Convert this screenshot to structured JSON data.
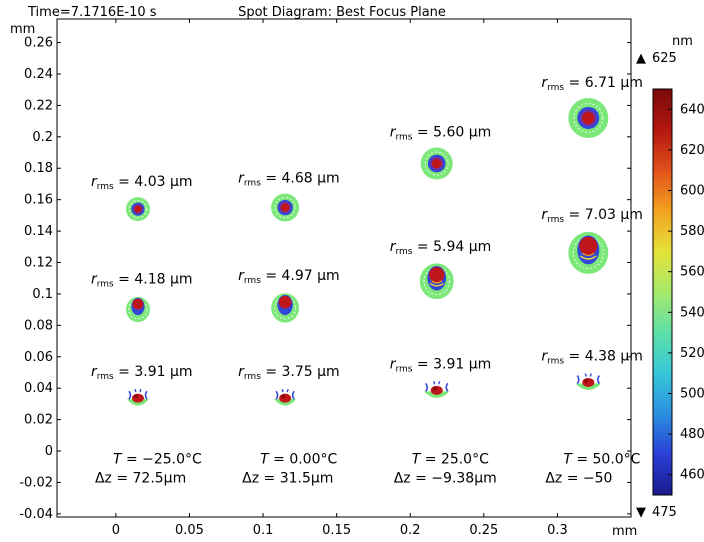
{
  "header": {
    "time_label": "Time=7.1716E-10 s",
    "title": "Spot Diagram: Best Focus Plane"
  },
  "axes": {
    "y_unit": "mm",
    "x_unit": "mm"
  },
  "colorbar": {
    "unit": "nm",
    "max_label": "625",
    "min_label": "475",
    "max_marker": "▲",
    "min_marker": "▼",
    "colors": [
      "#1a1a8c",
      "#2a3fd6",
      "#2b8fe0",
      "#36c7d8",
      "#5ee0a8",
      "#a6e96a",
      "#e5e23a",
      "#f2a21f",
      "#e0501a",
      "#b3160f",
      "#7a0a0a"
    ]
  },
  "chart_data": {
    "type": "scatter",
    "title": "Spot Diagram: Best Focus Plane",
    "xlabel": "mm",
    "ylabel": "mm",
    "xlim": [
      -0.04,
      0.35
    ],
    "ylim": [
      -0.042,
      0.275
    ],
    "x_ticks": [
      "0",
      "0.05",
      "0.1",
      "0.15",
      "0.2",
      "0.25",
      "0.3"
    ],
    "x_tick_values": [
      0,
      0.05,
      0.1,
      0.15,
      0.2,
      0.25,
      0.3
    ],
    "y_ticks": [
      "-0.04",
      "-0.02",
      "0",
      "0.02",
      "0.04",
      "0.06",
      "0.08",
      "0.1",
      "0.12",
      "0.14",
      "0.16",
      "0.18",
      "0.2",
      "0.22",
      "0.24",
      "0.26"
    ],
    "y_tick_values": [
      -0.04,
      -0.02,
      0,
      0.02,
      0.04,
      0.06,
      0.08,
      0.1,
      0.12,
      0.14,
      0.16,
      0.18,
      0.2,
      0.22,
      0.24,
      0.26
    ],
    "colorbar": {
      "label": "nm",
      "range": [
        450,
        650
      ],
      "ticks": [
        460,
        480,
        500,
        520,
        540,
        560,
        580,
        600,
        620,
        640
      ]
    },
    "spots": [
      {
        "x": 0.015,
        "y": 0.154,
        "rms": "4.03 µm",
        "style": "round"
      },
      {
        "x": 0.015,
        "y": 0.092,
        "rms": "4.18 µm",
        "style": "tear"
      },
      {
        "x": 0.015,
        "y": 0.033,
        "rms": "3.91 µm",
        "style": "flare"
      },
      {
        "x": 0.115,
        "y": 0.155,
        "rms": "4.68 µm",
        "style": "round"
      },
      {
        "x": 0.115,
        "y": 0.093,
        "rms": "4.97 µm",
        "style": "tear"
      },
      {
        "x": 0.115,
        "y": 0.033,
        "rms": "3.75 µm",
        "style": "flare"
      },
      {
        "x": 0.218,
        "y": 0.183,
        "rms": "5.60 µm",
        "style": "round"
      },
      {
        "x": 0.218,
        "y": 0.11,
        "rms": "5.94 µm",
        "style": "tear"
      },
      {
        "x": 0.218,
        "y": 0.038,
        "rms": "3.91 µm",
        "style": "flare"
      },
      {
        "x": 0.321,
        "y": 0.212,
        "rms": "6.71 µm",
        "style": "round"
      },
      {
        "x": 0.321,
        "y": 0.128,
        "rms": "7.03 µm",
        "style": "tear"
      },
      {
        "x": 0.321,
        "y": 0.043,
        "rms": "4.38 µm",
        "style": "flare"
      }
    ],
    "conditions": [
      {
        "x": 0.015,
        "T": "−25.0°C",
        "dz": "72.5µm"
      },
      {
        "x": 0.115,
        "T": "0.00°C",
        "dz": "31.5µm"
      },
      {
        "x": 0.218,
        "T": "25.0°C",
        "dz": "−9.38µm"
      },
      {
        "x": 0.321,
        "T": "50.0°C",
        "dz": "−50"
      }
    ],
    "label_text": {
      "r": "r",
      "rms_sub": "rms",
      "T": "T",
      "dz": "Δz",
      "eq": " = "
    }
  }
}
